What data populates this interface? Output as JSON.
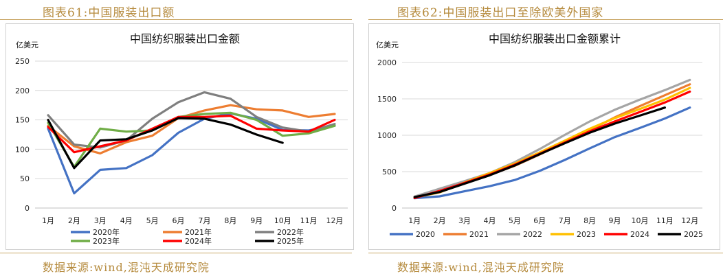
{
  "left": {
    "fig_title": "图表61:中国服装出口额",
    "source": "数据来源:wind,混沌天成研究院"
  },
  "right": {
    "fig_title": "图表62:中国服装出口至除欧美外国家",
    "source": "数据来源:wind,混沌天成研究院"
  },
  "chart_data": [
    {
      "type": "line",
      "title": "中国纺织服装出口金额",
      "ylabel": "亿美元",
      "xlabel": "",
      "ylim": [
        0,
        250
      ],
      "yticks": [
        0,
        50,
        100,
        150,
        200,
        250
      ],
      "grid": true,
      "legend_position": "bottom",
      "categories": [
        "1月",
        "2月",
        "3月",
        "4月",
        "5月",
        "6月",
        "7月",
        "8月",
        "9月",
        "10月",
        "11月",
        "12月"
      ],
      "series": [
        {
          "name": "2020年",
          "color": "#4472c4",
          "values": [
            135,
            25,
            65,
            68,
            90,
            128,
            152,
            161,
            152,
            133,
            132,
            140
          ]
        },
        {
          "name": "2021年",
          "color": "#ed7d31",
          "values": [
            140,
            105,
            93,
            112,
            123,
            153,
            166,
            175,
            168,
            166,
            155,
            160
          ]
        },
        {
          "name": "2022年",
          "color": "#7f7f7f",
          "values": [
            158,
            108,
            103,
            115,
            152,
            180,
            197,
            186,
            155,
            137,
            130,
            143
          ]
        },
        {
          "name": "2023年",
          "color": "#70ad47",
          "values": [
            145,
            70,
            135,
            130,
            132,
            155,
            160,
            162,
            150,
            123,
            127,
            140
          ]
        },
        {
          "name": "2024年",
          "color": "#ff0000",
          "values": [
            138,
            95,
            105,
            115,
            135,
            155,
            155,
            157,
            135,
            132,
            130,
            150
          ]
        },
        {
          "name": "2025年",
          "color": "#000000",
          "values": [
            150,
            68,
            115,
            117,
            132,
            153,
            152,
            142,
            125,
            111,
            null,
            null
          ]
        }
      ]
    },
    {
      "type": "line",
      "title": "中国纺织服装出口金额累计",
      "ylabel": "亿美元",
      "xlabel": "",
      "ylim": [
        0,
        2000
      ],
      "yticks": [
        0,
        500,
        1000,
        1500,
        2000
      ],
      "grid": true,
      "legend_position": "bottom",
      "categories": [
        "1月",
        "2月",
        "3月",
        "4月",
        "5月",
        "6月",
        "7月",
        "8月",
        "9月",
        "10月",
        "11月",
        "12月"
      ],
      "series": [
        {
          "name": "2020",
          "color": "#4472c4",
          "values": [
            135,
            160,
            230,
            300,
            385,
            510,
            660,
            820,
            975,
            1100,
            1230,
            1380
          ]
        },
        {
          "name": "2021",
          "color": "#ed7d31",
          "values": [
            140,
            245,
            345,
            455,
            580,
            735,
            900,
            1070,
            1245,
            1400,
            1550,
            1700
          ]
        },
        {
          "name": "2022",
          "color": "#a5a5a5",
          "values": [
            158,
            265,
            370,
            480,
            630,
            810,
            1005,
            1190,
            1350,
            1490,
            1620,
            1760
          ]
        },
        {
          "name": "2023",
          "color": "#ffc000",
          "values": [
            145,
            215,
            350,
            480,
            610,
            765,
            925,
            1090,
            1235,
            1360,
            1490,
            1650
          ]
        },
        {
          "name": "2024",
          "color": "#ff0000",
          "values": [
            138,
            235,
            345,
            460,
            595,
            745,
            900,
            1055,
            1190,
            1320,
            1450,
            1600
          ]
        },
        {
          "name": "2025",
          "color": "#000000",
          "values": [
            150,
            220,
            335,
            450,
            585,
            740,
            890,
            1035,
            1160,
            1270,
            1380,
            null
          ]
        }
      ]
    }
  ]
}
